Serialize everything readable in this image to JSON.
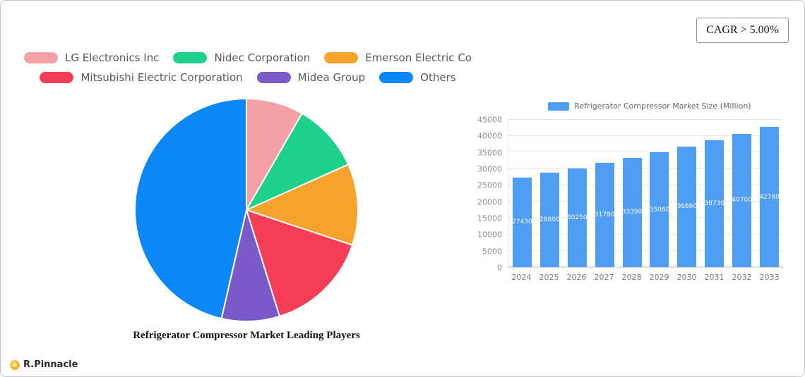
{
  "cagr_badge": {
    "label": "CAGR > 5.00%"
  },
  "brand": {
    "name": "R.Pinnacle",
    "icon": "sun-icon",
    "icon_color": "#f5a623"
  },
  "chart_data": [
    {
      "type": "pie",
      "title": "Refrigerator Compressor Market Leading Players",
      "labels": [
        "LG Electronics Inc",
        "Nidec Corporation",
        "Emerson Electric Co",
        "Mitsubishi Electric Corporation",
        "Midea Group",
        "Others"
      ],
      "values_pct": [
        8.3,
        10.0,
        11.8,
        15.1,
        8.4,
        46.4
      ],
      "colors": [
        "#f4a0a6",
        "#1dd08c",
        "#f5a42b",
        "#f53d57",
        "#7a5ac8",
        "#0b87f7"
      ],
      "slice_border_color": "#ffffff",
      "legend_position": "top",
      "start_angle_deg": 0,
      "direction": "clockwise"
    },
    {
      "type": "bar",
      "series_label": "Refrigerator Compressor Market Size (Million)",
      "categories": [
        "2024",
        "2025",
        "2026",
        "2027",
        "2028",
        "2029",
        "2030",
        "2031",
        "2032",
        "2033"
      ],
      "values": [
        27430,
        28800,
        30250,
        31780,
        33390,
        35080,
        36860,
        38730,
        40700,
        42780
      ],
      "bar_color": "#4f9ef3",
      "ylim": [
        0,
        45000
      ],
      "yticks": [
        0,
        5000,
        10000,
        15000,
        20000,
        25000,
        30000,
        35000,
        40000,
        45000
      ],
      "grid": true,
      "value_labels": "inside-center",
      "legend_position": "top"
    }
  ]
}
